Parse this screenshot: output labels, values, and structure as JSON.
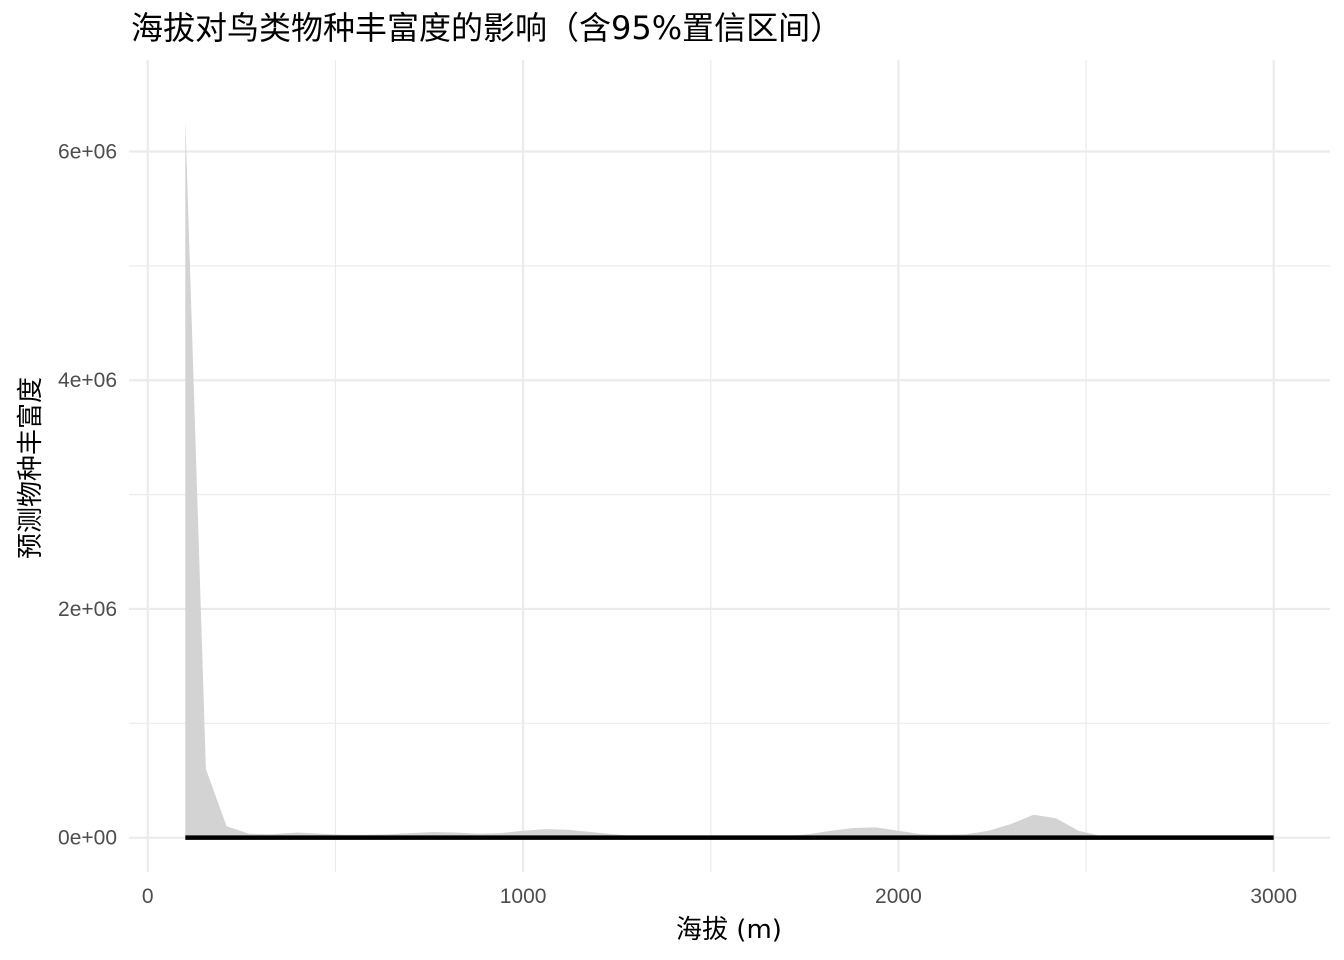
{
  "chart_data": {
    "type": "area",
    "title": "海拔对鸟类物种丰富度的影响（含95%置信区间）",
    "xlabel": "海拔 (m)",
    "ylabel": "预测物种丰富度",
    "xlim": [
      -50,
      3150
    ],
    "ylim": [
      -300000,
      6800000
    ],
    "x_ticks": [
      0,
      1000,
      2000,
      3000
    ],
    "x_tick_labels": [
      "0",
      "1000",
      "2000",
      "3000"
    ],
    "y_ticks": [
      0,
      2000000,
      4000000,
      6000000
    ],
    "y_tick_labels": [
      "0e+00",
      "2e+06",
      "4e+06",
      "6e+06"
    ],
    "grid": true,
    "x": [
      100,
      155,
      210,
      270,
      330,
      400,
      460,
      520,
      580,
      640,
      700,
      760,
      820,
      880,
      940,
      1000,
      1060,
      1120,
      1180,
      1240,
      1300,
      1400,
      1500,
      1600,
      1700,
      1760,
      1820,
      1880,
      1940,
      2000,
      2060,
      2120,
      2180,
      2240,
      2300,
      2360,
      2420,
      2480,
      2540,
      2600,
      2700,
      2800,
      2900,
      3000
    ],
    "series": [
      {
        "values": [
          1000,
          1000,
          1000,
          1000,
          1000,
          1000,
          1000,
          1000,
          1000,
          1000,
          1000,
          1000,
          1000,
          1000,
          1000,
          1000,
          1000,
          1000,
          1000,
          1000,
          1000,
          1000,
          1000,
          1000,
          1000,
          1000,
          1000,
          1000,
          1000,
          1000,
          1000,
          1000,
          1000,
          1000,
          1000,
          1000,
          1000,
          1000,
          1000,
          1000,
          1000,
          1000,
          1000,
          1000
        ],
        "upper": [
          6280000,
          600000,
          100000,
          35000,
          30000,
          45000,
          35000,
          25000,
          25000,
          30000,
          40000,
          50000,
          45000,
          35000,
          40000,
          60000,
          75000,
          70000,
          50000,
          30000,
          15000,
          10000,
          8000,
          8000,
          15000,
          30000,
          60000,
          85000,
          90000,
          60000,
          30000,
          25000,
          30000,
          60000,
          120000,
          200000,
          170000,
          60000,
          15000,
          5000,
          3000,
          2000,
          2000,
          2000
        ],
        "lower": [
          0,
          0,
          0,
          0,
          0,
          0,
          0,
          0,
          0,
          0,
          0,
          0,
          0,
          0,
          0,
          0,
          0,
          0,
          0,
          0,
          0,
          0,
          0,
          0,
          0,
          0,
          0,
          0,
          0,
          0,
          0,
          0,
          0,
          0,
          0,
          0,
          0,
          0,
          0,
          0,
          0,
          0,
          0,
          0
        ]
      }
    ],
    "colors": {
      "ribbon": "#d3d3d3",
      "line": "#000000",
      "grid": "#ebebeb",
      "tick_text": "#4d4d4d"
    }
  }
}
